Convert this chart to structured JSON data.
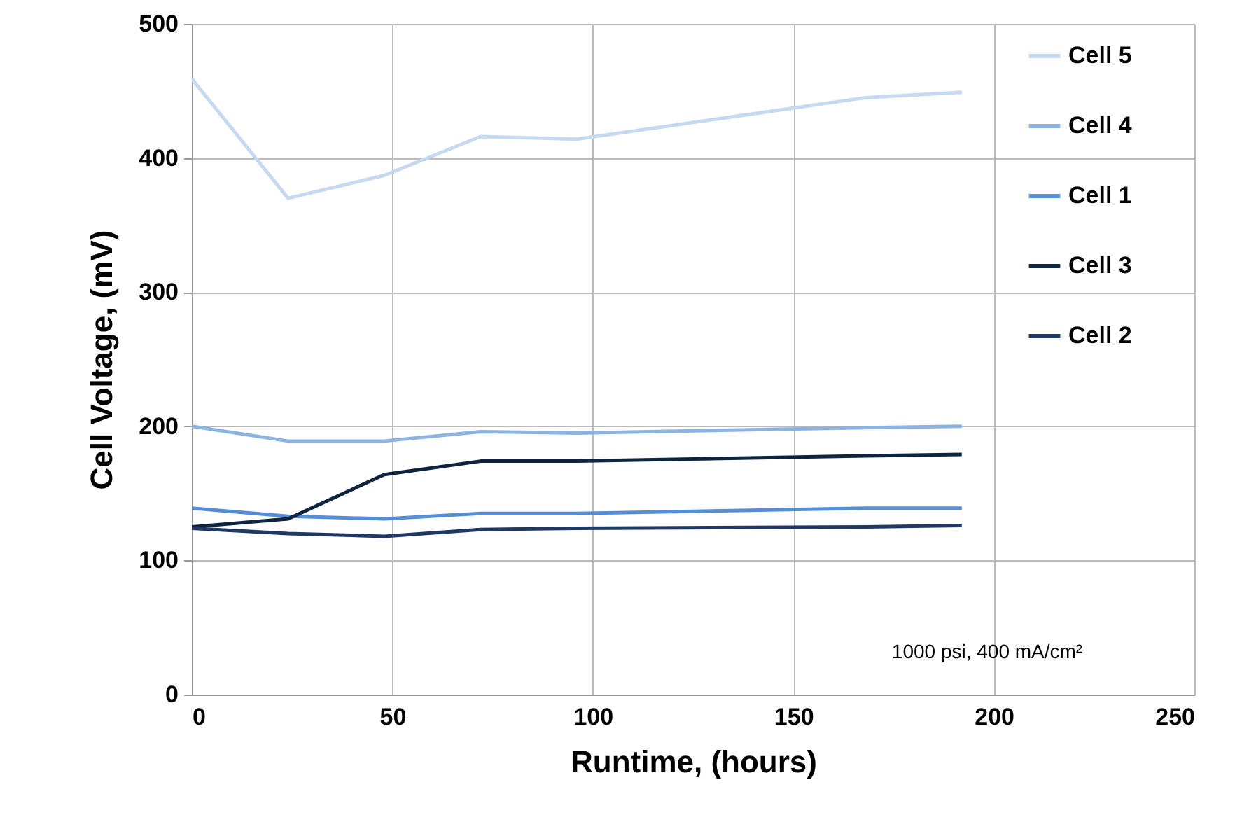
{
  "chart_data": {
    "type": "line",
    "xlabel": "Runtime, (hours)",
    "ylabel": "Cell Voltage, (mV)",
    "x": [
      0,
      24,
      48,
      72,
      96,
      168,
      192
    ],
    "series": [
      {
        "name": "Cell 5",
        "color": "#c6d9f1",
        "values": [
          459,
          370,
          387,
          416,
          414,
          445,
          449
        ]
      },
      {
        "name": "Cell 4",
        "color": "#8db3e2",
        "values": [
          200,
          189,
          189,
          196,
          195,
          199,
          200
        ]
      },
      {
        "name": "Cell 1",
        "color": "#558ed5",
        "values": [
          139,
          133,
          131,
          135,
          135,
          139,
          139
        ]
      },
      {
        "name": "Cell 3",
        "color": "#0f243e",
        "values": [
          125,
          131,
          164,
          174,
          174,
          178,
          179
        ]
      },
      {
        "name": "Cell 2",
        "color": "#1f3864",
        "values": [
          124,
          120,
          118,
          123,
          124,
          125,
          126
        ]
      }
    ],
    "xlim": [
      0,
      250
    ],
    "xticks": [
      0,
      50,
      100,
      150,
      200,
      250
    ],
    "ylim": [
      0,
      500
    ],
    "yticks": [
      0,
      100,
      200,
      300,
      400,
      500
    ],
    "grid": true,
    "legend": "top right",
    "marker": "none",
    "line_style": "solid",
    "annotations": [
      "1000 psi, 400 mA/cm²"
    ]
  }
}
